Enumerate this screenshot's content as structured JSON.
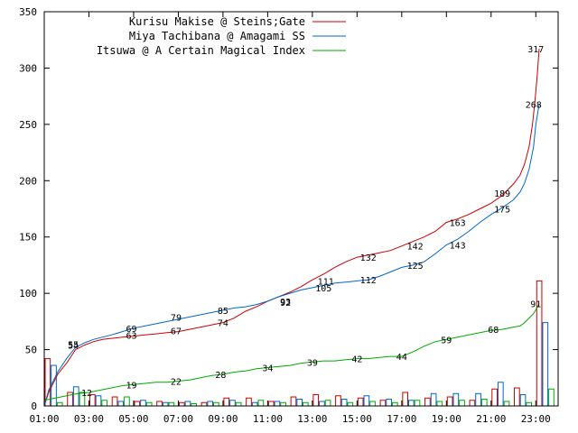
{
  "chart_data": {
    "type": "line",
    "title": "",
    "xlabel": "",
    "ylabel": "",
    "ylim": [
      0,
      350
    ],
    "yticks": [
      0,
      50,
      100,
      150,
      200,
      250,
      300,
      350
    ],
    "xlim": [
      1,
      24
    ],
    "xticks": [
      1,
      3,
      5,
      7,
      9,
      11,
      13,
      15,
      17,
      19,
      21,
      23
    ],
    "xtick_labels": [
      "01:00",
      "03:00",
      "05:00",
      "07:00",
      "09:00",
      "11:00",
      "13:00",
      "15:00",
      "17:00",
      "19:00",
      "21:00",
      "23:00"
    ],
    "grid": false,
    "legend_position": "top-right",
    "series": [
      {
        "name": "Kurisu Makise @ Steins;Gate",
        "color": "#cc0000",
        "points": [
          [
            1,
            0
          ],
          [
            1.2,
            12
          ],
          [
            1.6,
            28
          ],
          [
            2.0,
            38
          ],
          [
            2.4,
            50
          ],
          [
            2.8,
            54
          ],
          [
            3.2,
            57
          ],
          [
            3.6,
            59
          ],
          [
            4.0,
            60
          ],
          [
            4.5,
            61
          ],
          [
            5.0,
            62
          ],
          [
            5.5,
            63
          ],
          [
            6.0,
            64
          ],
          [
            6.5,
            65
          ],
          [
            7.0,
            66
          ],
          [
            7.5,
            68
          ],
          [
            8.0,
            70
          ],
          [
            8.5,
            72
          ],
          [
            9.0,
            74
          ],
          [
            9.5,
            78
          ],
          [
            10.0,
            84
          ],
          [
            10.5,
            88
          ],
          [
            11.0,
            93
          ],
          [
            11.5,
            97
          ],
          [
            12.0,
            101
          ],
          [
            12.5,
            106
          ],
          [
            13.0,
            112
          ],
          [
            13.5,
            117
          ],
          [
            14.0,
            123
          ],
          [
            14.5,
            128
          ],
          [
            15.0,
            132
          ],
          [
            15.5,
            134
          ],
          [
            16.0,
            136
          ],
          [
            16.5,
            138
          ],
          [
            17.0,
            142
          ],
          [
            17.5,
            146
          ],
          [
            18.0,
            150
          ],
          [
            18.5,
            155
          ],
          [
            19.0,
            163
          ],
          [
            19.5,
            166
          ],
          [
            20.0,
            170
          ],
          [
            20.5,
            175
          ],
          [
            21.0,
            180
          ],
          [
            21.5,
            187
          ],
          [
            22.0,
            197
          ],
          [
            22.3,
            205
          ],
          [
            22.5,
            215
          ],
          [
            22.7,
            230
          ],
          [
            22.85,
            250
          ],
          [
            22.95,
            268
          ],
          [
            23.05,
            290
          ],
          [
            23.15,
            317
          ]
        ],
        "annotations": [
          [
            2.3,
            54
          ],
          [
            4.9,
            63
          ],
          [
            6.9,
            67
          ],
          [
            9.0,
            74
          ],
          [
            11.8,
            93
          ],
          [
            13.6,
            111
          ],
          [
            15.5,
            132
          ],
          [
            17.6,
            142
          ],
          [
            19.5,
            163
          ],
          [
            21.5,
            189
          ],
          [
            23.0,
            317
          ]
        ]
      },
      {
        "name": "Miya Tachibana @ Amagami SS",
        "color": "#0066cc",
        "points": [
          [
            1,
            0
          ],
          [
            1.2,
            14
          ],
          [
            1.6,
            30
          ],
          [
            2.0,
            42
          ],
          [
            2.4,
            52
          ],
          [
            2.8,
            56
          ],
          [
            3.2,
            59
          ],
          [
            3.6,
            61
          ],
          [
            4.0,
            63
          ],
          [
            4.5,
            66
          ],
          [
            5.0,
            69
          ],
          [
            5.5,
            71
          ],
          [
            6.0,
            73
          ],
          [
            6.5,
            75
          ],
          [
            7.0,
            77
          ],
          [
            7.5,
            79
          ],
          [
            8.0,
            81
          ],
          [
            8.5,
            83
          ],
          [
            9.0,
            85
          ],
          [
            9.5,
            87
          ],
          [
            10.0,
            88
          ],
          [
            10.5,
            90
          ],
          [
            11.0,
            93
          ],
          [
            11.5,
            97
          ],
          [
            12.0,
            100
          ],
          [
            12.5,
            103
          ],
          [
            13.0,
            105
          ],
          [
            13.5,
            107
          ],
          [
            14.0,
            109
          ],
          [
            14.5,
            110
          ],
          [
            15.0,
            111
          ],
          [
            15.5,
            112
          ],
          [
            16.0,
            115
          ],
          [
            16.5,
            119
          ],
          [
            17.0,
            123
          ],
          [
            17.5,
            125
          ],
          [
            18.0,
            128
          ],
          [
            18.5,
            135
          ],
          [
            19.0,
            143
          ],
          [
            19.5,
            148
          ],
          [
            20.0,
            155
          ],
          [
            20.5,
            163
          ],
          [
            21.0,
            170
          ],
          [
            21.5,
            176
          ],
          [
            22.0,
            183
          ],
          [
            22.3,
            190
          ],
          [
            22.5,
            198
          ],
          [
            22.7,
            210
          ],
          [
            22.9,
            230
          ],
          [
            23.0,
            250
          ],
          [
            23.15,
            268
          ]
        ],
        "annotations": [
          [
            2.3,
            55
          ],
          [
            4.9,
            69
          ],
          [
            6.9,
            79
          ],
          [
            9.0,
            85
          ],
          [
            11.8,
            92
          ],
          [
            13.5,
            105
          ],
          [
            15.5,
            112
          ],
          [
            17.6,
            125
          ],
          [
            19.5,
            143
          ],
          [
            21.5,
            175
          ],
          [
            22.9,
            268
          ]
        ]
      },
      {
        "name": "Itsuwa @ A Certain Magical Index",
        "color": "#00aa00",
        "points": [
          [
            1,
            5
          ],
          [
            1.5,
            7
          ],
          [
            2.0,
            9
          ],
          [
            2.5,
            11
          ],
          [
            3.0,
            12
          ],
          [
            3.5,
            14
          ],
          [
            4.0,
            16
          ],
          [
            4.5,
            18
          ],
          [
            5.0,
            19
          ],
          [
            5.5,
            20
          ],
          [
            6.0,
            21
          ],
          [
            6.5,
            21
          ],
          [
            7.0,
            22
          ],
          [
            7.5,
            23
          ],
          [
            8.0,
            25
          ],
          [
            8.5,
            27
          ],
          [
            9.0,
            28
          ],
          [
            9.5,
            30
          ],
          [
            10.0,
            31
          ],
          [
            10.5,
            33
          ],
          [
            11.0,
            34
          ],
          [
            11.5,
            35
          ],
          [
            12.0,
            36
          ],
          [
            12.5,
            38
          ],
          [
            13.0,
            39
          ],
          [
            13.5,
            40
          ],
          [
            14.0,
            40
          ],
          [
            14.5,
            41
          ],
          [
            15.0,
            42
          ],
          [
            15.5,
            42
          ],
          [
            16.0,
            43
          ],
          [
            16.5,
            44
          ],
          [
            17.0,
            44
          ],
          [
            17.5,
            48
          ],
          [
            18.0,
            53
          ],
          [
            18.5,
            57
          ],
          [
            19.0,
            59
          ],
          [
            19.5,
            61
          ],
          [
            20.0,
            63
          ],
          [
            20.5,
            65
          ],
          [
            21.0,
            67
          ],
          [
            21.5,
            68
          ],
          [
            22.0,
            70
          ],
          [
            22.3,
            71
          ],
          [
            22.5,
            74
          ],
          [
            22.7,
            78
          ],
          [
            22.9,
            82
          ],
          [
            23.05,
            87
          ],
          [
            23.15,
            91
          ]
        ],
        "annotations": [
          [
            2.9,
            12
          ],
          [
            4.9,
            19
          ],
          [
            6.9,
            22
          ],
          [
            8.9,
            28
          ],
          [
            11.0,
            34
          ],
          [
            13.0,
            39
          ],
          [
            15.0,
            42
          ],
          [
            17.0,
            44
          ],
          [
            19.0,
            59
          ],
          [
            21.1,
            68
          ],
          [
            23.0,
            91
          ]
        ]
      }
    ],
    "annotation_labels": [
      [
        "54",
        "63",
        "67",
        "74",
        "93",
        "111",
        "132",
        "142",
        "163",
        "189",
        "317"
      ],
      [
        "55",
        "69",
        "79",
        "85",
        "92",
        "105",
        "112",
        "125",
        "143",
        "175",
        "268"
      ],
      [
        "12",
        "19",
        "22",
        "28",
        "34",
        "39",
        "42",
        "44",
        "59",
        "68",
        "91"
      ]
    ],
    "bars": {
      "hours": [
        1,
        2,
        3,
        4,
        5,
        6,
        7,
        8,
        9,
        10,
        11,
        12,
        13,
        14,
        15,
        16,
        17,
        18,
        19,
        20,
        21,
        22,
        23
      ],
      "Kurisu Makise @ Steins;Gate": [
        42,
        12,
        10,
        8,
        4,
        4,
        3,
        3,
        7,
        7,
        4,
        8,
        10,
        9,
        7,
        5,
        12,
        7,
        8,
        5,
        15,
        16,
        111
      ],
      "Miya Tachibana @ Amagami SS": [
        36,
        17,
        9,
        4,
        5,
        3,
        4,
        4,
        5,
        3,
        4,
        6,
        4,
        6,
        9,
        6,
        5,
        11,
        11,
        11,
        21,
        10,
        74
      ],
      "Itsuwa @ A Certain Magical Index": [
        3,
        12,
        5,
        8,
        3,
        3,
        2,
        3,
        3,
        5,
        3,
        3,
        5,
        3,
        4,
        3,
        5,
        4,
        5,
        6,
        4,
        3,
        15
      ]
    }
  }
}
